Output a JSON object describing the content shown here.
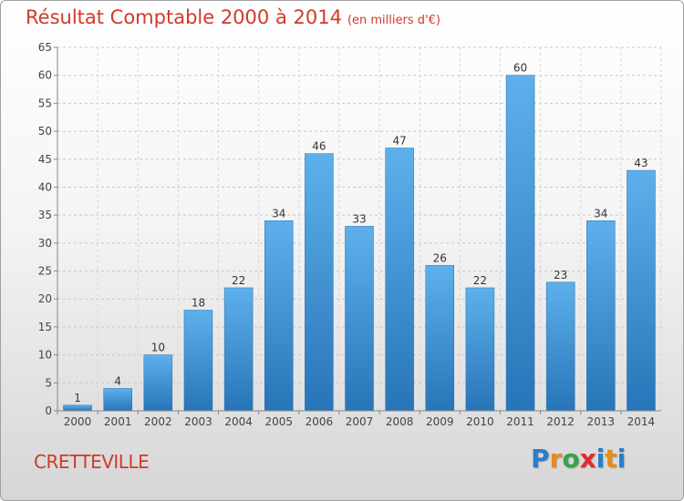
{
  "header": {
    "title": "Résultat Comptable 2000 à 2014",
    "subtitle": "(en milliers d'€)"
  },
  "footer": {
    "city": "CRETTEVILLE",
    "logo_letters": [
      "P",
      "r",
      "o",
      "x",
      "i",
      "t",
      "i"
    ]
  },
  "chart_data": {
    "type": "bar",
    "title": "Résultat Comptable 2000 à 2014",
    "subtitle": "(en milliers d'€)",
    "xlabel": "",
    "ylabel": "",
    "categories": [
      "2000",
      "2001",
      "2002",
      "2003",
      "2004",
      "2005",
      "2006",
      "2007",
      "2008",
      "2009",
      "2010",
      "2011",
      "2012",
      "2013",
      "2014"
    ],
    "values": [
      1,
      4,
      10,
      18,
      22,
      34,
      46,
      33,
      47,
      26,
      22,
      60,
      23,
      34,
      43
    ],
    "ylim": [
      0,
      65
    ],
    "yticks": [
      0,
      5,
      10,
      15,
      20,
      25,
      30,
      35,
      40,
      45,
      50,
      55,
      60,
      65
    ],
    "grid": true,
    "bar_color": "#3f8fd6",
    "data_labels": true
  }
}
